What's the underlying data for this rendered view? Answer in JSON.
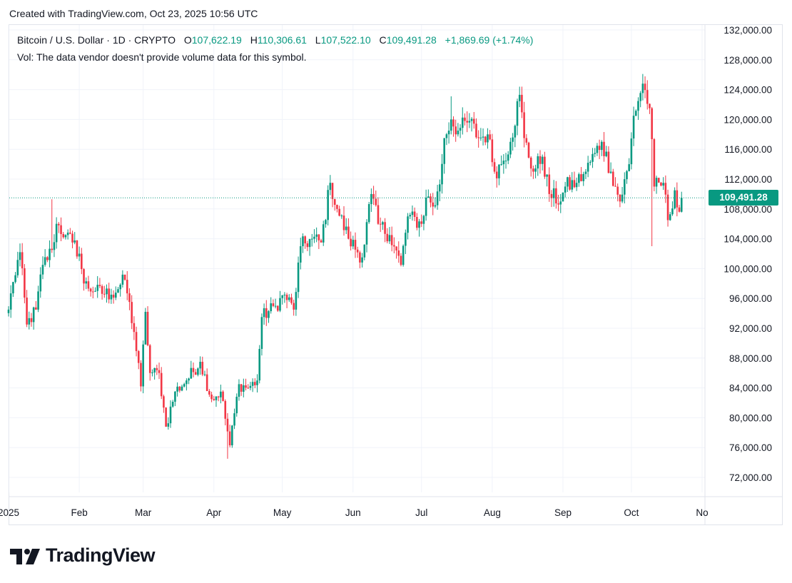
{
  "header": {
    "created_text": "Created with TradingView.com, Oct 23, 2025 10:56 UTC"
  },
  "legend": {
    "symbol": "Bitcoin / U.S. Dollar · 1D · CRYPTO",
    "open_label": "O",
    "open_value": "107,622.19",
    "high_label": "H",
    "high_value": "110,306.61",
    "low_label": "L",
    "low_value": "107,522.10",
    "close_label": "C",
    "close_value": "109,491.28",
    "change_text": "+1,869.69 (+1.74%)",
    "volume_text": "Vol: The data vendor doesn't provide volume data for this symbol."
  },
  "last_price": {
    "label": "109,491.28",
    "value": 109491.28
  },
  "brand": {
    "name": "TradingView"
  },
  "colors": {
    "up": "#089981",
    "down": "#f23645",
    "grid": "#f0f3fa",
    "axis_text": "#131722"
  },
  "chart_data": {
    "type": "candlestick",
    "ylim": [
      70000,
      133000
    ],
    "y_ticks": [
      {
        "value": 72000,
        "label": "72,000.00"
      },
      {
        "value": 76000,
        "label": "76,000.00"
      },
      {
        "value": 80000,
        "label": "80,000.00"
      },
      {
        "value": 84000,
        "label": "84,000.00"
      },
      {
        "value": 88000,
        "label": "88,000.00"
      },
      {
        "value": 92000,
        "label": "92,000.00"
      },
      {
        "value": 96000,
        "label": "96,000.00"
      },
      {
        "value": 100000,
        "label": "100,000.00"
      },
      {
        "value": 104000,
        "label": "104,000.00"
      },
      {
        "value": 108000,
        "label": "108,000.00"
      },
      {
        "value": 112000,
        "label": "112,000.00"
      },
      {
        "value": 116000,
        "label": "116,000.00"
      },
      {
        "value": 120000,
        "label": "120,000.00"
      },
      {
        "value": 124000,
        "label": "124,000.00"
      },
      {
        "value": 128000,
        "label": "128,000.00"
      },
      {
        "value": 132000,
        "label": "132,000.00"
      }
    ],
    "x_ticks": [
      {
        "date": "2025-01-01",
        "label": "2025"
      },
      {
        "date": "2025-02-01",
        "label": "Feb"
      },
      {
        "date": "2025-03-01",
        "label": "Mar"
      },
      {
        "date": "2025-04-01",
        "label": "Apr"
      },
      {
        "date": "2025-05-01",
        "label": "May"
      },
      {
        "date": "2025-06-01",
        "label": "Jun"
      },
      {
        "date": "2025-07-01",
        "label": "Jul"
      },
      {
        "date": "2025-08-01",
        "label": "Aug"
      },
      {
        "date": "2025-09-01",
        "label": "Sep"
      },
      {
        "date": "2025-10-01",
        "label": "Oct"
      },
      {
        "date": "2025-11-01",
        "label": "No"
      }
    ],
    "x_range": [
      "2025-01-01",
      "2025-11-01"
    ],
    "close_anchors": [
      [
        "2025-01-01",
        94500
      ],
      [
        "2025-01-03",
        98200
      ],
      [
        "2025-01-06",
        102200
      ],
      [
        "2025-01-09",
        92500
      ],
      [
        "2025-01-13",
        94500
      ],
      [
        "2025-01-16",
        100500
      ],
      [
        "2025-01-20",
        102500
      ],
      [
        "2025-01-22",
        106000
      ],
      [
        "2025-01-26",
        104500
      ],
      [
        "2025-01-29",
        103500
      ],
      [
        "2025-02-01",
        102000
      ],
      [
        "2025-02-03",
        98000
      ],
      [
        "2025-02-08",
        97000
      ],
      [
        "2025-02-15",
        96500
      ],
      [
        "2025-02-21",
        98500
      ],
      [
        "2025-02-25",
        91500
      ],
      [
        "2025-02-28",
        84200
      ],
      [
        "2025-03-02",
        94200
      ],
      [
        "2025-03-04",
        86000
      ],
      [
        "2025-03-08",
        86000
      ],
      [
        "2025-03-11",
        78800
      ],
      [
        "2025-03-15",
        83500
      ],
      [
        "2025-03-20",
        85000
      ],
      [
        "2025-03-26",
        87500
      ],
      [
        "2025-03-31",
        82500
      ],
      [
        "2025-04-04",
        83500
      ],
      [
        "2025-04-08",
        76300
      ],
      [
        "2025-04-12",
        84500
      ],
      [
        "2025-04-16",
        84000
      ],
      [
        "2025-04-20",
        85000
      ],
      [
        "2025-04-22",
        93500
      ],
      [
        "2025-04-28",
        95000
      ],
      [
        "2025-05-02",
        96500
      ],
      [
        "2025-05-06",
        94500
      ],
      [
        "2025-05-09",
        103000
      ],
      [
        "2025-05-14",
        104000
      ],
      [
        "2025-05-18",
        103500
      ],
      [
        "2025-05-22",
        111500
      ],
      [
        "2025-05-25",
        108000
      ],
      [
        "2025-05-30",
        104000
      ],
      [
        "2025-06-05",
        101500
      ],
      [
        "2025-06-09",
        110000
      ],
      [
        "2025-06-12",
        106000
      ],
      [
        "2025-06-17",
        104500
      ],
      [
        "2025-06-22",
        100500
      ],
      [
        "2025-06-25",
        107000
      ],
      [
        "2025-07-01",
        106000
      ],
      [
        "2025-07-03",
        109500
      ],
      [
        "2025-07-07",
        108500
      ],
      [
        "2025-07-09",
        111300
      ],
      [
        "2025-07-11",
        117500
      ],
      [
        "2025-07-14",
        120000
      ],
      [
        "2025-07-17",
        118500
      ],
      [
        "2025-07-22",
        119800
      ],
      [
        "2025-07-26",
        117500
      ],
      [
        "2025-07-30",
        118000
      ],
      [
        "2025-08-02",
        113000
      ],
      [
        "2025-08-05",
        114000
      ],
      [
        "2025-08-09",
        117000
      ],
      [
        "2025-08-13",
        123300
      ],
      [
        "2025-08-15",
        117500
      ],
      [
        "2025-08-19",
        113000
      ],
      [
        "2025-08-23",
        115000
      ],
      [
        "2025-08-26",
        110000
      ],
      [
        "2025-08-31",
        109000
      ],
      [
        "2025-09-02",
        111000
      ],
      [
        "2025-09-07",
        111500
      ],
      [
        "2025-09-11",
        113000
      ],
      [
        "2025-09-15",
        115500
      ],
      [
        "2025-09-18",
        117000
      ],
      [
        "2025-09-22",
        113000
      ],
      [
        "2025-09-26",
        109000
      ],
      [
        "2025-09-30",
        114000
      ],
      [
        "2025-10-02",
        120500
      ],
      [
        "2025-10-06",
        124800
      ],
      [
        "2025-10-09",
        121500
      ],
      [
        "2025-10-11",
        111000
      ],
      [
        "2025-10-15",
        111500
      ],
      [
        "2025-10-17",
        106500
      ],
      [
        "2025-10-20",
        110500
      ],
      [
        "2025-10-21",
        108200
      ],
      [
        "2025-10-22",
        107622
      ],
      [
        "2025-10-23",
        109491
      ]
    ],
    "wick_extremes": [
      {
        "date": "2025-01-20",
        "high": 109300
      },
      {
        "date": "2025-04-07",
        "low": 74500
      },
      {
        "date": "2025-07-14",
        "high": 123100
      },
      {
        "date": "2025-08-14",
        "high": 124400
      },
      {
        "date": "2025-10-06",
        "high": 126100
      },
      {
        "date": "2025-10-10",
        "low": 103000
      }
    ],
    "last_candle": {
      "date": "2025-10-23",
      "open": 107622.19,
      "high": 110306.61,
      "low": 107522.1,
      "close": 109491.28
    }
  }
}
